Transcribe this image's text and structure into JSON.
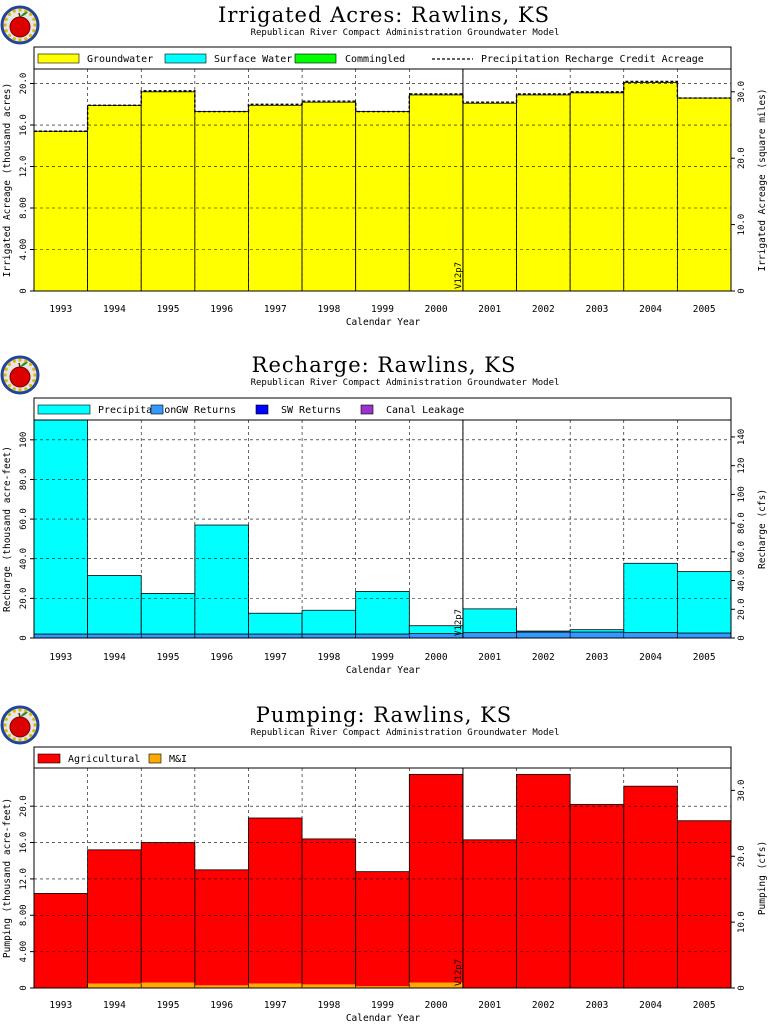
{
  "subtitle": "Republican River Compact Administration Groundwater Model",
  "xlabel": "Calendar Year",
  "years": [
    "1993",
    "1994",
    "1995",
    "1996",
    "1997",
    "1998",
    "1999",
    "2000",
    "2001",
    "2002",
    "2003",
    "2004",
    "2005"
  ],
  "marker_label": "V12p7",
  "colors": {
    "groundwater": "#ffff00",
    "surface_water": "#00ffff",
    "commingled": "#00ff00",
    "precipitation": "#00ffff",
    "gw_returns": "#3399ff",
    "sw_returns": "#0000ff",
    "canal_leakage": "#9933cc",
    "agricultural": "#ff0000",
    "mi": "#ffaa00",
    "logo_red": "#dd0000",
    "logo_blue": "#224499"
  },
  "chart_data": [
    {
      "type": "bar",
      "title": "Irrigated Acres: Rawlins, KS",
      "subtitle": "Republican River Compact Administration Groundwater Model",
      "xlabel": "Calendar Year",
      "ylabel": "Irrigated Acreage (thousand acres)",
      "ylabel_right": "Irrigated Acreage (square miles)",
      "ylim": [
        0,
        21.4
      ],
      "yticks": [
        "0",
        "4.00",
        "8.00",
        "12.0",
        "16.0",
        "20.0"
      ],
      "yticks_right": [
        "0",
        "10.0",
        "20.0",
        "30.0"
      ],
      "right_scale": 1.5625,
      "legend": [
        "Groundwater",
        "Surface Water",
        "Commingled",
        "Precipitation Recharge Credit Acreage"
      ],
      "grid": true,
      "categories": [
        "1993",
        "1994",
        "1995",
        "1996",
        "1997",
        "1998",
        "1999",
        "2000",
        "2001",
        "2002",
        "2003",
        "2004",
        "2005"
      ],
      "series": [
        {
          "name": "Groundwater",
          "values": [
            15.4,
            17.9,
            19.2,
            17.3,
            17.9,
            18.2,
            17.3,
            18.9,
            18.1,
            18.9,
            19.1,
            20.1,
            18.6
          ]
        },
        {
          "name": "Surface Water",
          "values": [
            0,
            0,
            0,
            0,
            0,
            0,
            0,
            0,
            0,
            0,
            0,
            0,
            0
          ]
        },
        {
          "name": "Commingled",
          "values": [
            0,
            0,
            0,
            0,
            0,
            0,
            0,
            0,
            0,
            0,
            0,
            0,
            0
          ]
        },
        {
          "name": "Precipitation Recharge Credit Acreage",
          "values": [
            15.4,
            17.9,
            19.3,
            17.3,
            18.0,
            18.3,
            17.3,
            19.0,
            18.2,
            19.0,
            19.2,
            20.2,
            18.6
          ]
        }
      ]
    },
    {
      "type": "bar",
      "title": "Recharge: Rawlins, KS",
      "subtitle": "Republican River Compact Administration Groundwater Model",
      "xlabel": "Calendar Year",
      "ylabel": "Recharge (thousand acre-feet)",
      "ylabel_right": "Recharge (cfs)",
      "ylim": [
        0,
        110
      ],
      "yticks": [
        "0",
        "20.0",
        "40.0",
        "60.0",
        "80.0",
        "100"
      ],
      "yticks_right": [
        "0",
        "20.0",
        "40.0",
        "60.0",
        "80.0",
        "100",
        "120",
        "140"
      ],
      "right_scale": 1.38,
      "legend": [
        "Precipitation",
        "GW Returns",
        "SW Returns",
        "Canal Leakage"
      ],
      "grid": true,
      "categories": [
        "1993",
        "1994",
        "1995",
        "1996",
        "1997",
        "1998",
        "1999",
        "2000",
        "2001",
        "2002",
        "2003",
        "2004",
        "2005"
      ],
      "series": [
        {
          "name": "Precipitation",
          "values": [
            108,
            29.5,
            20.5,
            55,
            10.5,
            12,
            21.5,
            4,
            12,
            0.5,
            1.2,
            35,
            31
          ]
        },
        {
          "name": "GW Returns",
          "values": [
            2,
            2,
            2,
            2,
            2,
            2,
            2,
            2.2,
            2.7,
            3,
            3,
            2.7,
            2.5
          ]
        },
        {
          "name": "SW Returns",
          "values": [
            0,
            0,
            0,
            0,
            0,
            0,
            0,
            0,
            0,
            0,
            0,
            0,
            0
          ]
        },
        {
          "name": "Canal Leakage",
          "values": [
            0,
            0,
            0,
            0,
            0,
            0,
            0,
            0,
            0,
            0,
            0,
            0,
            0
          ]
        }
      ]
    },
    {
      "type": "bar",
      "title": "Pumping: Rawlins, KS",
      "subtitle": "Republican River Compact Administration Groundwater Model",
      "xlabel": "Calendar Year",
      "ylabel": "Pumping (thousand acre-feet)",
      "ylabel_right": "Pumping (cfs)",
      "ylim": [
        0,
        24.2
      ],
      "yticks": [
        "0",
        "4.00",
        "8.00",
        "12.0",
        "16.0",
        "20.0"
      ],
      "yticks_right": [
        "0",
        "10.0",
        "20.0",
        "30.0"
      ],
      "right_scale": 1.38,
      "legend": [
        "Agricultural",
        "M&I"
      ],
      "grid": true,
      "categories": [
        "1993",
        "1994",
        "1995",
        "1996",
        "1997",
        "1998",
        "1999",
        "2000",
        "2001",
        "2002",
        "2003",
        "2004",
        "2005"
      ],
      "series": [
        {
          "name": "Agricultural",
          "values": [
            10.4,
            14.7,
            15.4,
            12.7,
            18.2,
            16.0,
            12.6,
            22.9,
            16.3,
            23.5,
            20.2,
            22.2,
            18.4
          ]
        },
        {
          "name": "M&I",
          "values": [
            0,
            0.5,
            0.6,
            0.3,
            0.5,
            0.4,
            0.2,
            0.6,
            0,
            0,
            0,
            0,
            0
          ]
        }
      ]
    }
  ]
}
